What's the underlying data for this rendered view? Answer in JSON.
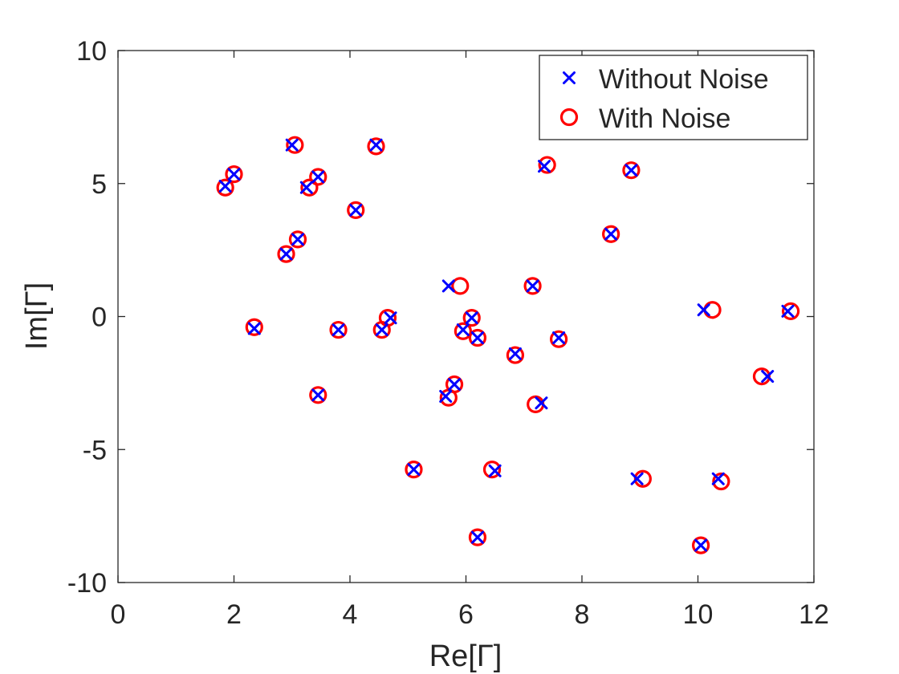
{
  "chart_data": {
    "type": "scatter",
    "xlabel": "Re[Γ]",
    "ylabel": "Im[Γ]",
    "xlim": [
      0,
      12
    ],
    "ylim": [
      -10,
      10
    ],
    "xticks": [
      0,
      2,
      4,
      6,
      8,
      10,
      12
    ],
    "yticks": [
      -10,
      -5,
      0,
      5,
      10
    ],
    "xtick_labels": [
      "0",
      "2",
      "4",
      "6",
      "8",
      "10",
      "12"
    ],
    "ytick_labels": [
      "-10",
      "-5",
      "0",
      "5",
      "10"
    ],
    "grid": false,
    "legend_position": "top-right",
    "series": [
      {
        "name": "Without Noise",
        "marker": "x",
        "color": "#0000ff",
        "points": [
          [
            1.85,
            4.9
          ],
          [
            2.0,
            5.35
          ],
          [
            3.0,
            6.45
          ],
          [
            4.45,
            6.45
          ],
          [
            3.45,
            5.25
          ],
          [
            3.25,
            4.85
          ],
          [
            4.1,
            4.0
          ],
          [
            3.1,
            2.9
          ],
          [
            2.9,
            2.35
          ],
          [
            2.35,
            -0.45
          ],
          [
            3.8,
            -0.5
          ],
          [
            4.55,
            -0.5
          ],
          [
            4.7,
            -0.05
          ],
          [
            3.45,
            -2.95
          ],
          [
            5.7,
            1.15
          ],
          [
            6.1,
            -0.05
          ],
          [
            5.95,
            -0.5
          ],
          [
            6.2,
            -0.8
          ],
          [
            5.8,
            -2.55
          ],
          [
            5.65,
            -3.0
          ],
          [
            5.1,
            -5.75
          ],
          [
            6.5,
            -5.8
          ],
          [
            6.2,
            -8.3
          ],
          [
            7.35,
            5.65
          ],
          [
            8.85,
            5.5
          ],
          [
            8.5,
            3.1
          ],
          [
            7.15,
            1.15
          ],
          [
            6.85,
            -1.4
          ],
          [
            7.6,
            -0.8
          ],
          [
            7.3,
            -3.25
          ],
          [
            8.95,
            -6.1
          ],
          [
            10.05,
            -8.6
          ],
          [
            10.1,
            0.25
          ],
          [
            11.55,
            0.2
          ],
          [
            11.2,
            -2.25
          ],
          [
            10.35,
            -6.1
          ]
        ]
      },
      {
        "name": "With Noise",
        "marker": "o",
        "color": "#ff0000",
        "points": [
          [
            1.85,
            4.85
          ],
          [
            2.0,
            5.35
          ],
          [
            3.05,
            6.45
          ],
          [
            4.45,
            6.4
          ],
          [
            3.45,
            5.25
          ],
          [
            3.3,
            4.85
          ],
          [
            4.1,
            4.0
          ],
          [
            3.1,
            2.9
          ],
          [
            2.9,
            2.35
          ],
          [
            2.35,
            -0.4
          ],
          [
            3.8,
            -0.5
          ],
          [
            4.55,
            -0.5
          ],
          [
            4.65,
            -0.05
          ],
          [
            3.45,
            -2.95
          ],
          [
            5.9,
            1.15
          ],
          [
            6.1,
            -0.05
          ],
          [
            5.95,
            -0.55
          ],
          [
            6.2,
            -0.8
          ],
          [
            5.8,
            -2.55
          ],
          [
            5.7,
            -3.05
          ],
          [
            5.1,
            -5.75
          ],
          [
            6.45,
            -5.75
          ],
          [
            6.2,
            -8.3
          ],
          [
            7.4,
            5.7
          ],
          [
            8.85,
            5.5
          ],
          [
            8.5,
            3.1
          ],
          [
            7.15,
            1.15
          ],
          [
            6.85,
            -1.45
          ],
          [
            7.6,
            -0.85
          ],
          [
            7.2,
            -3.3
          ],
          [
            9.05,
            -6.1
          ],
          [
            10.05,
            -8.6
          ],
          [
            10.25,
            0.25
          ],
          [
            11.6,
            0.2
          ],
          [
            11.1,
            -2.25
          ],
          [
            10.4,
            -6.2
          ]
        ]
      }
    ]
  }
}
